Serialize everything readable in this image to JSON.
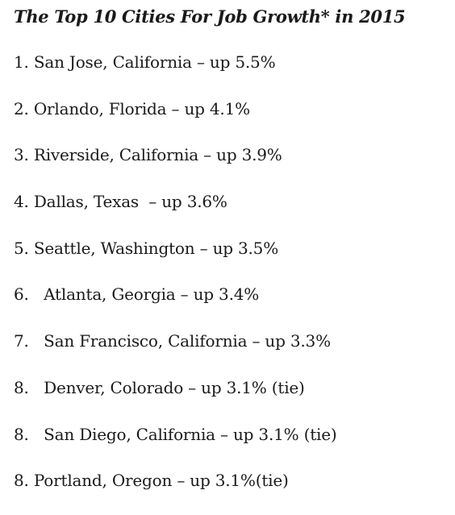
{
  "document": {
    "title": "The Top 10 Cities For Job Growth* in 2015",
    "items": [
      "1. San Jose, California – up 5.5%",
      "2. Orlando, Florida – up 4.1%",
      "3. Riverside, California – up 3.9%",
      "4. Dallas, Texas  – up 3.6%",
      "5. Seattle, Washington – up 3.5%",
      "6.   Atlanta, Georgia – up 3.4%",
      "7.   San Francisco, California – up 3.3%",
      "8.   Denver, Colorado – up 3.1% (tie)",
      "8.   San Diego, California – up 3.1% (tie)",
      "8. Portland, Oregon – up 3.1%(tie)"
    ]
  }
}
